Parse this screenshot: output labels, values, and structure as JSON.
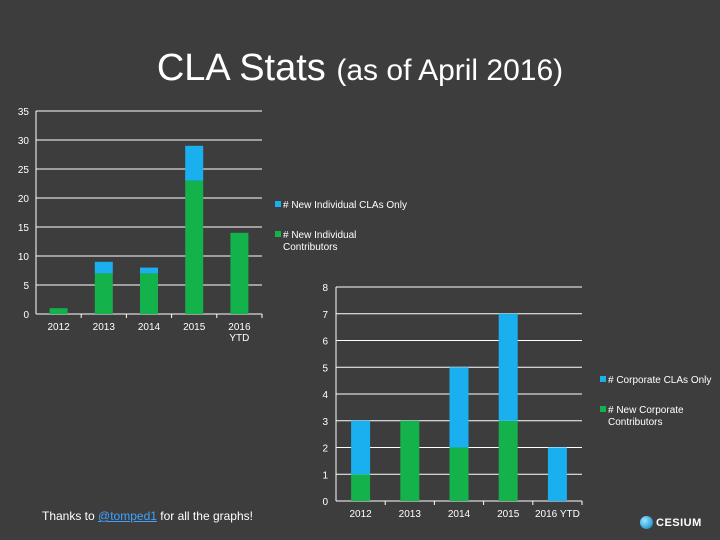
{
  "title": {
    "main": "CLA Stats",
    "sub": "(as of April 2016)"
  },
  "colors": {
    "cyan": "#1ab0f0",
    "green": "#14b24a",
    "grid": "#ffffff"
  },
  "chart_data": [
    {
      "type": "bar",
      "stacked": true,
      "categories": [
        "2012",
        "2013",
        "2014",
        "2015",
        "2016\nYTD"
      ],
      "series": [
        {
          "name": "# New Individual Contributors",
          "color": "#14b24a",
          "values": [
            1,
            7,
            7,
            23,
            14
          ]
        },
        {
          "name": "# New Individual CLAs Only",
          "color": "#1ab0f0",
          "values": [
            0,
            2,
            1,
            6,
            0
          ]
        }
      ],
      "yticks": [
        0,
        5,
        10,
        15,
        20,
        25,
        30,
        35
      ],
      "ylim": [
        0,
        35
      ],
      "grid": true,
      "legend": [
        {
          "label": "# New Individual CLAs Only",
          "color": "#1ab0f0"
        },
        {
          "label": "# New Individual\nContributors",
          "color": "#14b24a"
        }
      ]
    },
    {
      "type": "bar",
      "stacked": true,
      "categories": [
        "2012",
        "2013",
        "2014",
        "2015",
        "2016 YTD"
      ],
      "series": [
        {
          "name": "# New Corporate Contributors",
          "color": "#14b24a",
          "values": [
            1,
            3,
            2,
            3,
            0
          ]
        },
        {
          "name": "# Corporate CLAs Only",
          "color": "#1ab0f0",
          "values": [
            2,
            0,
            3,
            4,
            2
          ]
        }
      ],
      "yticks": [
        0,
        1,
        2,
        3,
        4,
        5,
        6,
        7,
        8
      ],
      "ylim": [
        0,
        8
      ],
      "grid": true,
      "legend": [
        {
          "label": "# Corporate CLAs Only",
          "color": "#1ab0f0"
        },
        {
          "label": "# New Corporate\nContributors",
          "color": "#14b24a"
        }
      ]
    }
  ],
  "footer": {
    "thanks_prefix": "Thanks to ",
    "thanks_link": "@tomped1",
    "thanks_suffix": " for all the graphs!"
  },
  "logo": {
    "text": "CESIUM"
  }
}
